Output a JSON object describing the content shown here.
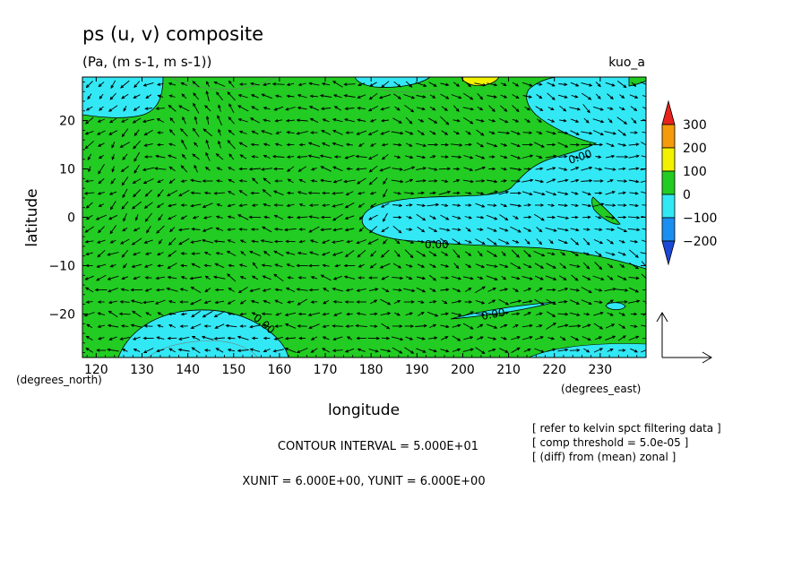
{
  "chart_data": {
    "type": "heatmap",
    "title": "ps (u, v) composite",
    "subtitle": "(Pa, (m s-1, m s-1))",
    "top_right_label": "kuo_a",
    "xlabel": "longitude",
    "ylabel": "latitude",
    "x_unit_label": "(degrees_east)",
    "y_unit_label": "(degrees_north)",
    "xlim": [
      117,
      240
    ],
    "ylim": [
      -29,
      29
    ],
    "x_ticks": [
      120,
      130,
      140,
      150,
      160,
      170,
      180,
      190,
      200,
      210,
      220,
      230
    ],
    "x_tick_labels": [
      "120",
      "130",
      "140",
      "150",
      "160",
      "170",
      "180",
      "190",
      "200",
      "210",
      "220",
      "230"
    ],
    "y_ticks": [
      20,
      10,
      0,
      -10,
      -20
    ],
    "y_tick_labels": [
      "20",
      "10",
      "0",
      "−10",
      "−20"
    ],
    "colorbar": {
      "labels": [
        "300",
        "200",
        "100",
        "0",
        "−100",
        "−200"
      ],
      "colors": [
        "#e8231e",
        "#f59a0a",
        "#f2f200",
        "#22cc22",
        "#33e8f5",
        "#1a8ff2",
        "#1b49d6"
      ]
    },
    "contour_labels": [
      "0.00",
      "0.00",
      "0.00",
      "0.00"
    ],
    "field_colors": {
      "zero_to_100": "#22cc22",
      "minus100_to_0": "#33e8f5",
      "100_to_200": "#f2f200",
      "200_to_300": "#f59a0a"
    },
    "footer": {
      "contour_interval": "CONTOUR INTERVAL = 5.000E+01",
      "units": "XUNIT = 6.000E+00, YUNIT = 6.000E+00",
      "notes": [
        "[ refer to kelvin spct filtering data ]",
        "[ comp threshold = 5.0e-05 ]",
        "[ (diff) from (mean) zonal ]"
      ]
    }
  }
}
